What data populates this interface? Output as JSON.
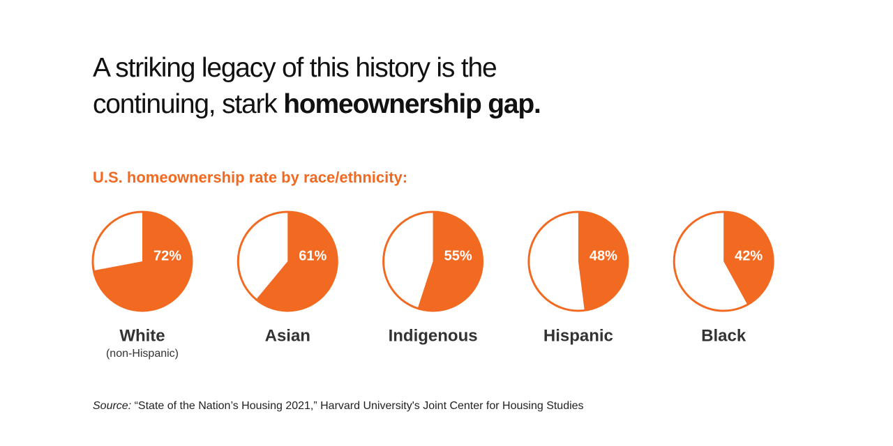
{
  "chart_data": {
    "type": "pie",
    "title": "A striking legacy of this history is the continuing, stark",
    "title_emphasis": "homeownership gap.",
    "subtitle": "U.S. homeownership rate by race/ethnicity:",
    "categories": [
      "White",
      "Asian",
      "Indigenous",
      "Hispanic",
      "Black"
    ],
    "notes": [
      "(non-Hispanic)",
      null,
      null,
      null,
      null
    ],
    "values": [
      72,
      61,
      55,
      48,
      42
    ],
    "value_labels": [
      "72%",
      "61%",
      "55%",
      "48%",
      "42%"
    ],
    "color": "#f26a21",
    "source_label": "Source:",
    "source": "“State of the Nation’s Housing 2021,” Harvard University's Joint Center for Housing Studies"
  }
}
